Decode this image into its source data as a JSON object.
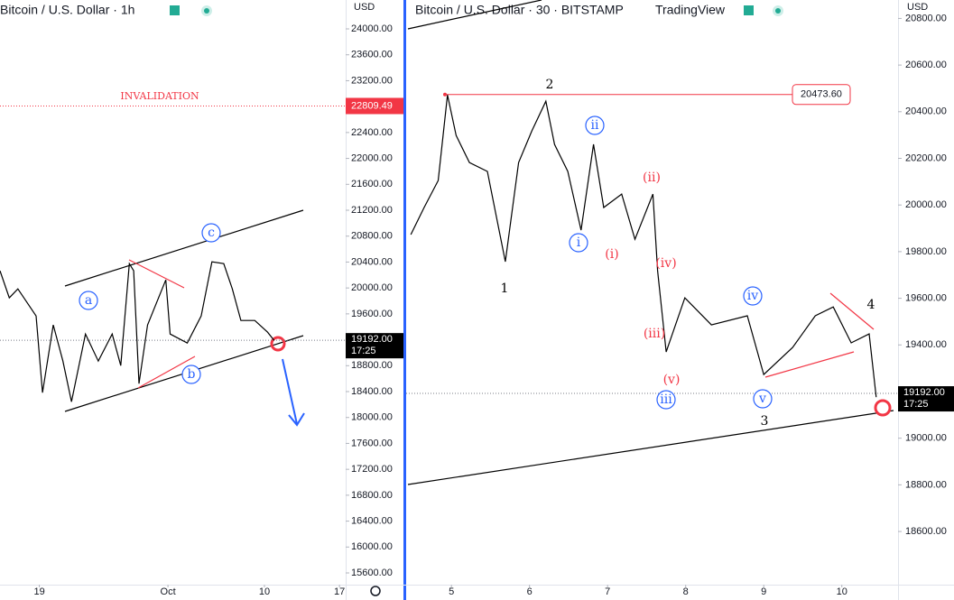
{
  "chart_data": [
    {
      "type": "line",
      "title": "Bitcoin / U.S. Dollar · 1h",
      "currency": "USD",
      "color": "#000000",
      "x": [
        15.33,
        16.2,
        17.0,
        18.7,
        19.3,
        20.3,
        21.2,
        22.0,
        23.3,
        24.5,
        25.8,
        26.6,
        27.4,
        27.8,
        28.3,
        29.1,
        30.8,
        31.2,
        32.8,
        34.1,
        35.1,
        36.2,
        37.0,
        37.8,
        39.1,
        40.3,
        40.9
      ],
      "values": [
        20265,
        19847,
        19986,
        19568,
        18383,
        19429,
        18871,
        18244,
        19289,
        18871,
        19289,
        18801,
        20376,
        20265,
        18523,
        19429,
        20125,
        19289,
        19150,
        19568,
        20404,
        20376,
        19986,
        19498,
        19498,
        19317,
        19190
      ],
      "xlim": [
        15.33,
        47.58
      ],
      "xticks": [
        {
          "value": 19,
          "label": "19"
        },
        {
          "value": 31,
          "label": "Oct"
        },
        {
          "value": 40,
          "label": "10"
        },
        {
          "value": 47,
          "label": "17"
        }
      ],
      "ylim": [
        15419,
        24446
      ],
      "yticks": [
        {
          "value": 15600,
          "label": "15600.00"
        },
        {
          "value": 16000,
          "label": "16000.00"
        },
        {
          "value": 16400,
          "label": "16400.00"
        },
        {
          "value": 16800,
          "label": "16800.00"
        },
        {
          "value": 17200,
          "label": "17200.00"
        },
        {
          "value": 17600,
          "label": "17600.00"
        },
        {
          "value": 18000,
          "label": "18000.00"
        },
        {
          "value": 18400,
          "label": "18400.00"
        },
        {
          "value": 18800,
          "label": "18800.00"
        },
        {
          "value": 19600,
          "label": "19600.00"
        },
        {
          "value": 20000,
          "label": "20000.00"
        },
        {
          "value": 20400,
          "label": "20400.00"
        },
        {
          "value": 20800,
          "label": "20800.00"
        },
        {
          "value": 21200,
          "label": "21200.00"
        },
        {
          "value": 21600,
          "label": "21600.00"
        },
        {
          "value": 22000,
          "label": "22000.00"
        },
        {
          "value": 22400,
          "label": "22400.00"
        },
        {
          "value": 23200,
          "label": "23200.00"
        },
        {
          "value": 23600,
          "label": "23600.00"
        },
        {
          "value": 24000,
          "label": "24000.00"
        }
      ],
      "price_lines": [
        22809.49,
        {
          "value": 19192,
          "label": "19192.00"
        }
      ],
      "countdown": "17:25",
      "annotations": [
        "INVALIDATION",
        "a",
        "b",
        "c"
      ]
    },
    {
      "type": "line",
      "title": "Bitcoin / U.S. Dollar · 30 · BITSTAMP",
      "source": "TradingView",
      "currency": "USD",
      "color": "#000000",
      "x": [
        4.48,
        4.65,
        4.83,
        4.95,
        5.06,
        5.23,
        5.46,
        5.69,
        5.86,
        6.03,
        6.21,
        6.32,
        6.49,
        6.66,
        6.82,
        6.95,
        7.18,
        7.35,
        7.58,
        7.64,
        7.75,
        7.99,
        8.33,
        8.79,
        9.0,
        9.37,
        9.66,
        9.89,
        10.12,
        10.35,
        10.44
      ],
      "values": [
        19873,
        19989,
        20105,
        20472,
        20298,
        20182,
        20144,
        19757,
        20182,
        20318,
        20445,
        20260,
        20144,
        19892,
        20260,
        19989,
        20047,
        19853,
        20047,
        19718,
        19370,
        19602,
        19486,
        19525,
        19273,
        19389,
        19525,
        19563,
        19409,
        19447,
        19176
      ],
      "xlim": [
        4.42,
        10.72
      ],
      "xticks": [
        5,
        6,
        7,
        8,
        9,
        10
      ],
      "ylim": [
        18372,
        20879
      ],
      "yticks": [
        {
          "value": 18600,
          "label": "18600.00"
        },
        {
          "value": 18800,
          "label": "18800.00"
        },
        {
          "value": 19000,
          "label": "19000.00"
        },
        {
          "value": 19400,
          "label": "19400.00"
        },
        {
          "value": 19600,
          "label": "19600.00"
        },
        {
          "value": 19800,
          "label": "19800.00"
        },
        {
          "value": 20000,
          "label": "20000.00"
        },
        {
          "value": 20200,
          "label": "20200.00"
        },
        {
          "value": 20400,
          "label": "20400.00"
        },
        {
          "value": 20600,
          "label": "20600.00"
        },
        {
          "value": 20800,
          "label": "20800.00"
        }
      ],
      "price_lines": [
        {
          "value": 20473.6,
          "label": "20473.60"
        },
        {
          "value": 19192,
          "label": "19192.00"
        }
      ],
      "countdown": "17:25",
      "annotations": [
        "2",
        "1",
        "3",
        "4",
        "i",
        "ii",
        "iii",
        "iv",
        "v",
        "(i)",
        "(ii)",
        "(iii)",
        "(iv)",
        "(v)"
      ]
    }
  ]
}
